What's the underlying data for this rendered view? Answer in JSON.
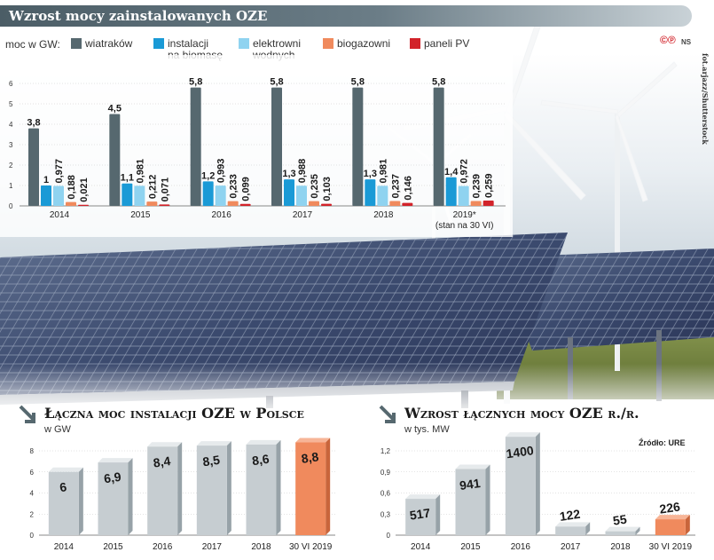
{
  "title": "Wzrost mocy zainstalowanych OZE",
  "legend": {
    "label": "moc w GW:",
    "items": [
      {
        "name": "wiatraków",
        "color": "#56686f"
      },
      {
        "name": "instalacji na biomasę",
        "line1": "instalacji",
        "line2": "na biomasę",
        "color": "#1a9ad6"
      },
      {
        "name": "elektrowni wodnych",
        "line1": "elektrowni",
        "line2": "wodnych",
        "color": "#8fd3f0"
      },
      {
        "name": "biogazowni",
        "color": "#f08a5d"
      },
      {
        "name": "paneli PV",
        "color": "#d2232a"
      }
    ]
  },
  "logo": "©℗",
  "logo_suffix": "NS",
  "photo_credit": "fot.arjazz/Shutterstock",
  "source": "Źródło: URE",
  "sections": {
    "left_title": "Łączna moc instalacji OZE w Polsce",
    "left_unit": "w GW",
    "right_title": "Wzrost łącznych mocy OZE r./r.",
    "right_unit": "w tys. MW"
  },
  "chart_data": [
    {
      "type": "bar",
      "title": "Wzrost mocy zainstalowanych OZE",
      "ylabel": "moc w GW",
      "ylim": [
        0,
        6
      ],
      "yticks": [
        0,
        1,
        2,
        3,
        4,
        5,
        6
      ],
      "categories": [
        "2014",
        "2015",
        "2016",
        "2017",
        "2018",
        "2019*"
      ],
      "category_note": "(stan na 30 VI)",
      "series": [
        {
          "name": "wiatraków",
          "color": "#56686f",
          "values": [
            3.8,
            4.5,
            5.8,
            5.8,
            5.8,
            5.8
          ],
          "labels": [
            "3,8",
            "4,5",
            "5,8",
            "5,8",
            "5,8",
            "5,8"
          ]
        },
        {
          "name": "instalacji na biomasę",
          "color": "#1a9ad6",
          "values": [
            1,
            1.1,
            1.2,
            1.3,
            1.3,
            1.4
          ],
          "labels": [
            "1",
            "1,1",
            "1,2",
            "1,3",
            "1,3",
            "1,4"
          ]
        },
        {
          "name": "elektrowni wodnych",
          "color": "#8fd3f0",
          "values": [
            0.977,
            0.981,
            0.993,
            0.988,
            0.981,
            0.972
          ],
          "labels": [
            "0,977",
            "0,981",
            "0,993",
            "0,988",
            "0,981",
            "0,972"
          ]
        },
        {
          "name": "biogazowni",
          "color": "#f08a5d",
          "values": [
            0.188,
            0.212,
            0.233,
            0.235,
            0.237,
            0.239
          ],
          "labels": [
            "0,188",
            "0,212",
            "0,233",
            "0,235",
            "0,237",
            "0,239"
          ]
        },
        {
          "name": "paneli PV",
          "color": "#d2232a",
          "values": [
            0.021,
            0.071,
            0.099,
            0.103,
            0.146,
            0.259
          ],
          "labels": [
            "0,021",
            "0,071",
            "0,099",
            "0,103",
            "0,146",
            "0,259"
          ]
        }
      ]
    },
    {
      "type": "bar",
      "title": "Łączna moc instalacji OZE w Polsce",
      "ylabel": "w GW",
      "ylim": [
        0,
        8
      ],
      "yticks": [
        0,
        2,
        4,
        6,
        8
      ],
      "categories": [
        "2014",
        "2015",
        "2016",
        "2017",
        "2018",
        "30 VI 2019"
      ],
      "values": [
        6,
        6.9,
        8.4,
        8.5,
        8.6,
        8.8
      ],
      "labels": [
        "6",
        "6,9",
        "8,4",
        "8,5",
        "8,6",
        "8,8"
      ],
      "colors": [
        "#c6cdd1",
        "#c6cdd1",
        "#c6cdd1",
        "#c6cdd1",
        "#c6cdd1",
        "#f08a5d"
      ]
    },
    {
      "type": "bar",
      "title": "Wzrost łącznych mocy OZE r./r.",
      "ylabel": "w tys. MW",
      "ylim": [
        0,
        1.2
      ],
      "yticks": [
        0,
        0.3,
        0.6,
        0.9,
        1.2
      ],
      "ytick_labels": [
        "0",
        "0,3",
        "0,6",
        "0,9",
        "1,2"
      ],
      "categories": [
        "2014",
        "2015",
        "2016",
        "2017",
        "2018",
        "30 VI 2019"
      ],
      "values": [
        517,
        941,
        1400,
        122,
        55,
        226
      ],
      "labels": [
        "517",
        "941",
        "1400",
        "122",
        "55",
        "226"
      ],
      "colors": [
        "#c6cdd1",
        "#c6cdd1",
        "#c6cdd1",
        "#c6cdd1",
        "#c6cdd1",
        "#f08a5d"
      ]
    }
  ]
}
